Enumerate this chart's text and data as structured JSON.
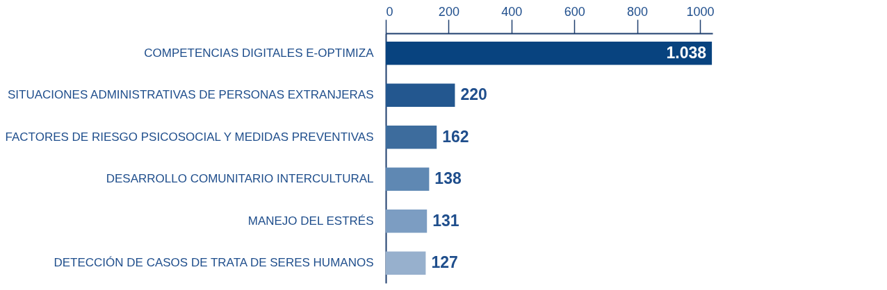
{
  "chart_data": {
    "type": "bar",
    "orientation": "horizontal",
    "categories": [
      "COMPETENCIAS DIGITALES E-OPTIMIZA",
      "SITUACIONES ADMINISTRATIVAS DE PERSONAS EXTRANJERAS",
      "FACTORES DE RIESGO PSICOSOCIAL Y MEDIDAS PREVENTIVAS",
      "DESARROLLO COMUNITARIO INTERCULTURAL",
      "MANEJO DEL ESTRÉS",
      "DETECCIÓN DE CASOS DE TRATA DE SERES HUMANOS"
    ],
    "values": [
      1038,
      220,
      162,
      138,
      131,
      127
    ],
    "value_labels": [
      "1.038",
      "220",
      "162",
      "138",
      "131",
      "127"
    ],
    "colors": [
      "#08437f",
      "#23578f",
      "#3d6c9d",
      "#5f88b3",
      "#7c9dc2",
      "#97b0cd"
    ],
    "xlim": [
      0,
      1040
    ],
    "xticks": [
      0,
      200,
      400,
      600,
      800,
      1000
    ],
    "grid": false
  }
}
